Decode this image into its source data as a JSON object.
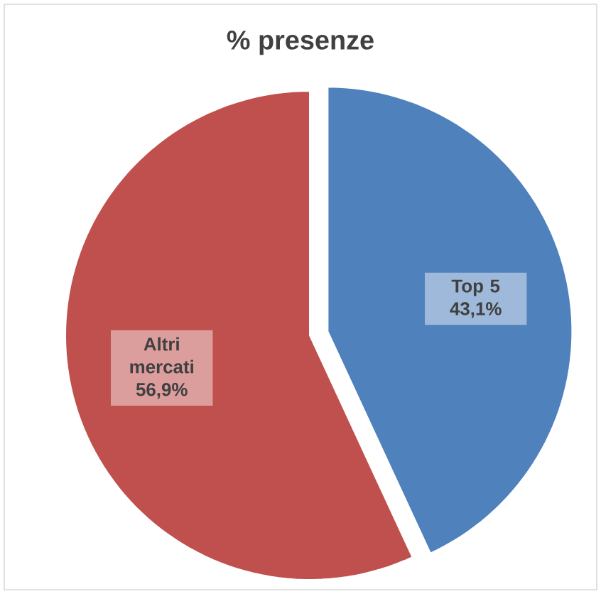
{
  "chart_data": {
    "type": "pie",
    "title": "% presenze",
    "categories": [
      "Top 5",
      "Altri mercati"
    ],
    "values": [
      43.1,
      56.9
    ],
    "colors": [
      "#4f81bd",
      "#c0504d"
    ],
    "value_labels": [
      "43,1%",
      "56,9%"
    ]
  }
}
